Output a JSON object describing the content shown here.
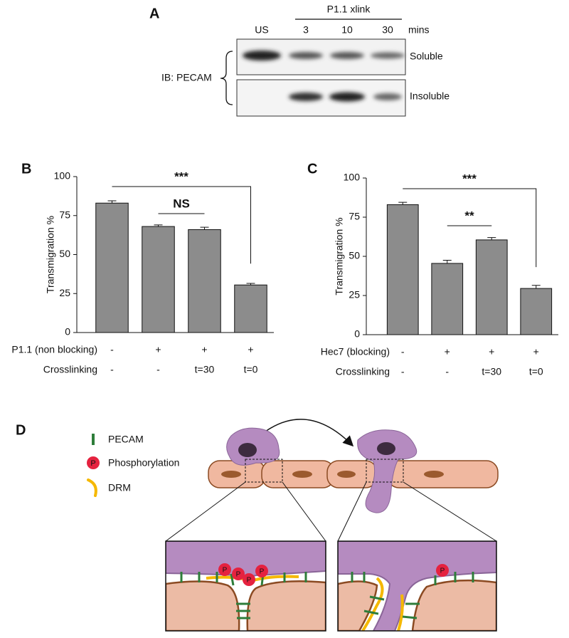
{
  "panel_a": {
    "label": "A",
    "group_label": "P1.1 xlink",
    "lanes": [
      "US",
      "3",
      "10",
      "30"
    ],
    "unit": "mins",
    "rows": [
      "Soluble",
      "Insoluble"
    ],
    "antibody": "IB: PECAM"
  },
  "chart_data": [
    {
      "type": "bar",
      "panel": "B",
      "ylabel": "Transmigration %",
      "values": [
        83,
        68,
        66,
        30.5
      ],
      "errors": [
        1.5,
        1,
        1.5,
        1
      ],
      "color": "#8c8c8c",
      "ylim": [
        0,
        100
      ],
      "yticks": [
        0,
        25,
        50,
        75,
        100
      ],
      "treatments": [
        {
          "name": "P1.1 (non blocking)",
          "values": [
            "-",
            "+",
            "+",
            "+"
          ]
        },
        {
          "name": "Crosslinking",
          "values": [
            "-",
            "-",
            "t=30",
            "t=0"
          ]
        }
      ],
      "annotations": [
        "***",
        "NS"
      ]
    },
    {
      "type": "bar",
      "panel": "C",
      "ylabel": "Transmigration %",
      "values": [
        83,
        45.5,
        60.5,
        29.5
      ],
      "errors": [
        1.5,
        2,
        1.5,
        2
      ],
      "color": "#8c8c8c",
      "ylim": [
        0,
        100
      ],
      "yticks": [
        0,
        25,
        50,
        75,
        100
      ],
      "treatments": [
        {
          "name": "Hec7 (blocking)",
          "values": [
            "-",
            "+",
            "+",
            "+"
          ]
        },
        {
          "name": "Crosslinking",
          "values": [
            "-",
            "-",
            "t=30",
            "t=0"
          ]
        }
      ],
      "annotations": [
        "***",
        "**"
      ]
    }
  ],
  "panel_d": {
    "label": "D",
    "legend": [
      "PECAM",
      "Phosphorylation",
      "DRM"
    ],
    "phospho_symbol": "P"
  }
}
